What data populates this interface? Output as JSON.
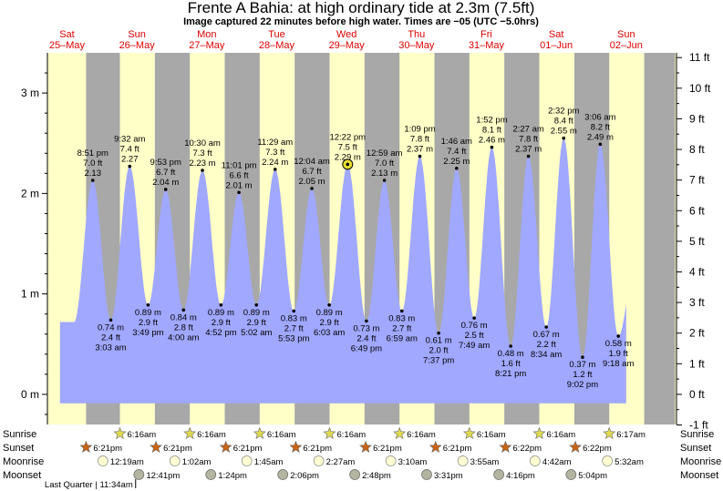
{
  "header": {
    "title": "Frente A Bahia: at high  ordinary tide at 2.3m (7.5ft)",
    "subtitle": "Image captured 22 minutes before high water. Times are −05 (UTC −5.0hrs)"
  },
  "colors": {
    "day": "#ffffc8",
    "night": "#a8a8a8",
    "tide": "#a0a8ff",
    "day_label": "#dd0000",
    "sunrise_star": "#e0dc50",
    "sunset_star": "#c86414",
    "moonrise_circle": "#ffffd2",
    "moonset_circle": "#b4b4a0"
  },
  "chart_data": {
    "type": "area",
    "title": "Frente A Bahia: at high  ordinary tide at 2.3m (7.5ft)",
    "x_unit": "days since Sat 25-May 00:00 (UTC-5)",
    "xlim": [
      0.22,
      9.22
    ],
    "left_axis": {
      "unit": "m",
      "ylim": [
        -0.3,
        3.4
      ],
      "ticks": [
        0,
        1,
        2,
        3
      ],
      "tick_labels": [
        "0 m",
        "1 m",
        "2 m",
        "3 m"
      ]
    },
    "right_axis": {
      "unit": "ft",
      "ticks": [
        -1,
        0,
        1,
        2,
        3,
        4,
        5,
        6,
        7,
        8,
        9,
        10,
        11
      ],
      "tick_labels": [
        "-1 ft",
        "0 ft",
        "1 ft",
        "2 ft",
        "3 ft",
        "4 ft",
        "5 ft",
        "6 ft",
        "7 ft",
        "8 ft",
        "9 ft",
        "10 ft",
        "11 ft"
      ]
    },
    "days": [
      {
        "day": "Sat",
        "date": "25–May"
      },
      {
        "day": "Sun",
        "date": "26–May"
      },
      {
        "day": "Mon",
        "date": "27–May"
      },
      {
        "day": "Tue",
        "date": "28–May"
      },
      {
        "day": "Wed",
        "date": "29–May"
      },
      {
        "day": "Thu",
        "date": "30–May"
      },
      {
        "day": "Fri",
        "date": "31–May"
      },
      {
        "day": "Sat",
        "date": "01–Jun"
      },
      {
        "day": "Sun",
        "date": "02–Jun"
      }
    ],
    "night_bands": [
      [
        0.773,
        1.257
      ],
      [
        1.757,
        2.257
      ],
      [
        2.757,
        3.257
      ],
      [
        3.757,
        4.257
      ],
      [
        4.757,
        5.257
      ],
      [
        5.757,
        6.257
      ],
      [
        6.757,
        7.257
      ],
      [
        7.758,
        8.258
      ],
      [
        8.758,
        9.2
      ]
    ],
    "tide_events": [
      {
        "t": 0.869,
        "type": "high",
        "time": "8:51 pm",
        "m": "2.13",
        "ft": "7.0 ft"
      },
      {
        "t": 1.127,
        "type": "low",
        "time": "3:03 am",
        "m": "0.74 m",
        "ft": "2.4 ft"
      },
      {
        "t": 1.397,
        "type": "high",
        "time": "9:32 am",
        "m": "2.27",
        "ft": "7.4 ft"
      },
      {
        "t": 1.66,
        "type": "low",
        "time": "3:49 pm",
        "m": "0.89 m",
        "ft": "2.9 ft"
      },
      {
        "t": 1.912,
        "type": "high",
        "time": "9:53 pm",
        "m": "2.04 m",
        "ft": "6.7 ft"
      },
      {
        "t": 2.167,
        "type": "low",
        "time": "4:00 am",
        "m": "0.84 m",
        "ft": "2.8 ft"
      },
      {
        "t": 2.438,
        "type": "high",
        "time": "10:30 am",
        "m": "2.23 m",
        "ft": "7.3 ft"
      },
      {
        "t": 2.703,
        "type": "low",
        "time": "4:52 pm",
        "m": "0.89 m",
        "ft": "2.9 ft"
      },
      {
        "t": 2.96,
        "type": "high",
        "time": "11:01 pm",
        "m": "2.01 m",
        "ft": "6.6 ft"
      },
      {
        "t": 3.21,
        "type": "low",
        "time": "5:02 am",
        "m": "0.89 m",
        "ft": "2.9 ft"
      },
      {
        "t": 3.478,
        "type": "high",
        "time": "11:29 am",
        "m": "2.24 m",
        "ft": "7.3 ft"
      },
      {
        "t": 3.745,
        "type": "low",
        "time": "5:53 pm",
        "m": "0.83 m",
        "ft": "2.7 ft"
      },
      {
        "t": 4.003,
        "type": "high",
        "time": "12:04 am",
        "m": "2.05 m",
        "ft": "6.7 ft"
      },
      {
        "t": 4.252,
        "type": "low",
        "time": "6:03 am",
        "m": "0.89 m",
        "ft": "2.9 ft"
      },
      {
        "t": 4.515,
        "type": "high",
        "time": "12:22 pm",
        "m": "2.29 m",
        "ft": "7.5 ft"
      },
      {
        "t": 4.784,
        "type": "low",
        "time": "6:49 pm",
        "m": "0.73 m",
        "ft": "2.4 ft"
      },
      {
        "t": 5.041,
        "type": "high",
        "time": "12:59 am",
        "m": "2.13 m",
        "ft": "7.0 ft"
      },
      {
        "t": 5.291,
        "type": "low",
        "time": "6:59 am",
        "m": "0.83 m",
        "ft": "2.7 ft"
      },
      {
        "t": 5.548,
        "type": "high",
        "time": "1:09 pm",
        "m": "2.37 m",
        "ft": "7.8 ft"
      },
      {
        "t": 5.817,
        "type": "low",
        "time": "7:37 pm",
        "m": "0.61 m",
        "ft": "2.0 ft"
      },
      {
        "t": 6.074,
        "type": "high",
        "time": "1:46 am",
        "m": "2.25 m",
        "ft": "7.4 ft"
      },
      {
        "t": 6.326,
        "type": "low",
        "time": "7:49 am",
        "m": "0.76 m",
        "ft": "2.5 ft"
      },
      {
        "t": 6.578,
        "type": "high",
        "time": "1:52 pm",
        "m": "2.46 m",
        "ft": "8.1 ft"
      },
      {
        "t": 6.848,
        "type": "low",
        "time": "8:21 pm",
        "m": "0.48 m",
        "ft": "1.6 ft"
      },
      {
        "t": 7.102,
        "type": "high",
        "time": "2:27 am",
        "m": "2.37 m",
        "ft": "7.8 ft"
      },
      {
        "t": 7.357,
        "type": "low",
        "time": "8:34 am",
        "m": "0.67 m",
        "ft": "2.2 ft"
      },
      {
        "t": 7.606,
        "type": "high",
        "time": "2:32 pm",
        "m": "2.55 m",
        "ft": "8.4 ft"
      },
      {
        "t": 7.876,
        "type": "low",
        "time": "9:02 pm",
        "m": "0.37 m",
        "ft": "1.2 ft"
      },
      {
        "t": 8.129,
        "type": "high",
        "time": "3:06 am",
        "m": "2.49 m",
        "ft": "8.2 ft"
      },
      {
        "t": 8.388,
        "type": "low",
        "time": "9:18 am",
        "m": "0.58 m",
        "ft": "1.9 ft"
      }
    ],
    "current_marker_index": 14
  },
  "bottom_rows": {
    "labels_left": [
      "Sunrise",
      "Sunset",
      "Moonrise",
      "Moonset"
    ],
    "labels_right": [
      "Sunrise",
      "Sunset",
      "Moonrise",
      "Moonset"
    ],
    "sunrise": [
      {
        "t": 1.257,
        "label": "6:16am"
      },
      {
        "t": 2.257,
        "label": "6:16am"
      },
      {
        "t": 3.257,
        "label": "6:16am"
      },
      {
        "t": 4.257,
        "label": "6:16am"
      },
      {
        "t": 5.257,
        "label": "6:16am"
      },
      {
        "t": 6.257,
        "label": "6:16am"
      },
      {
        "t": 7.257,
        "label": "6:16am"
      },
      {
        "t": 8.258,
        "label": "6:17am"
      }
    ],
    "sunset": [
      {
        "t": 0.773,
        "label": "6:21pm"
      },
      {
        "t": 1.773,
        "label": "6:21pm"
      },
      {
        "t": 2.773,
        "label": "6:21pm"
      },
      {
        "t": 3.773,
        "label": "6:21pm"
      },
      {
        "t": 4.773,
        "label": "6:21pm"
      },
      {
        "t": 5.773,
        "label": "6:21pm"
      },
      {
        "t": 6.773,
        "label": "6:22pm"
      },
      {
        "t": 7.773,
        "label": "6:22pm"
      }
    ],
    "moonrise": [
      {
        "t": 1.014,
        "label": "12:19am"
      },
      {
        "t": 2.043,
        "label": "1:02am"
      },
      {
        "t": 3.073,
        "label": "1:45am"
      },
      {
        "t": 4.102,
        "label": "2:27am"
      },
      {
        "t": 5.132,
        "label": "3:10am"
      },
      {
        "t": 6.163,
        "label": "3:55am"
      },
      {
        "t": 7.196,
        "label": "4:42am"
      },
      {
        "t": 8.231,
        "label": "5:32am"
      }
    ],
    "moonset": [
      {
        "t": 1.529,
        "label": "12:41pm"
      },
      {
        "t": 2.558,
        "label": "1:24pm"
      },
      {
        "t": 3.588,
        "label": "2:06pm"
      },
      {
        "t": 4.617,
        "label": "2:48pm"
      },
      {
        "t": 5.646,
        "label": "3:31pm"
      },
      {
        "t": 6.678,
        "label": "4:16pm"
      },
      {
        "t": 7.711,
        "label": "5:04pm"
      }
    ],
    "moon_phase": {
      "t": 1.482,
      "label": "Last Quarter | 11:34am"
    }
  }
}
